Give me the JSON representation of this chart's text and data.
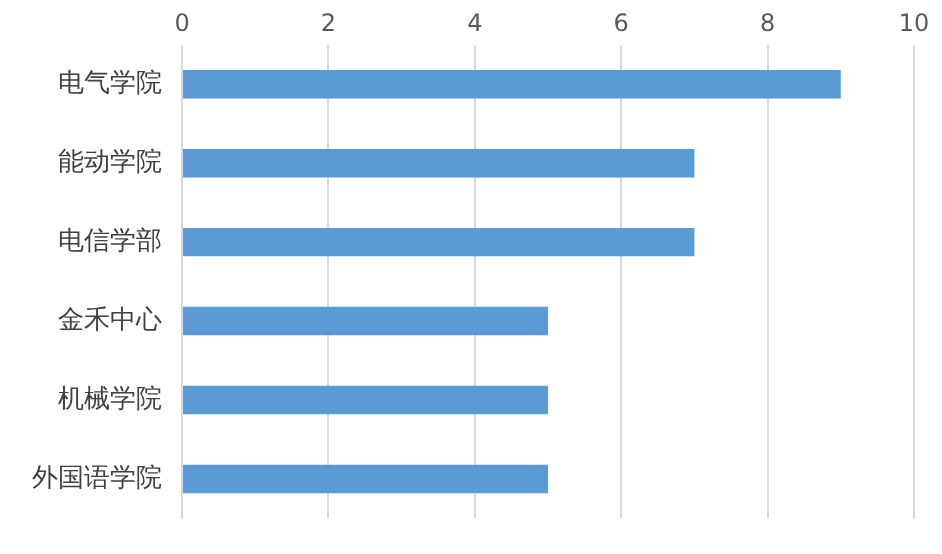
{
  "chart_data": {
    "type": "bar",
    "orientation": "horizontal",
    "categories": [
      "电气学院",
      "能动学院",
      "电信学部",
      "金禾中心",
      "机械学院",
      "外国语学院"
    ],
    "values": [
      9,
      7,
      7,
      5,
      5,
      5
    ],
    "color": "#5b9bd5",
    "xlim": [
      0,
      10
    ],
    "xticks": [
      0,
      2,
      4,
      6,
      8,
      10
    ],
    "grid": "x"
  }
}
